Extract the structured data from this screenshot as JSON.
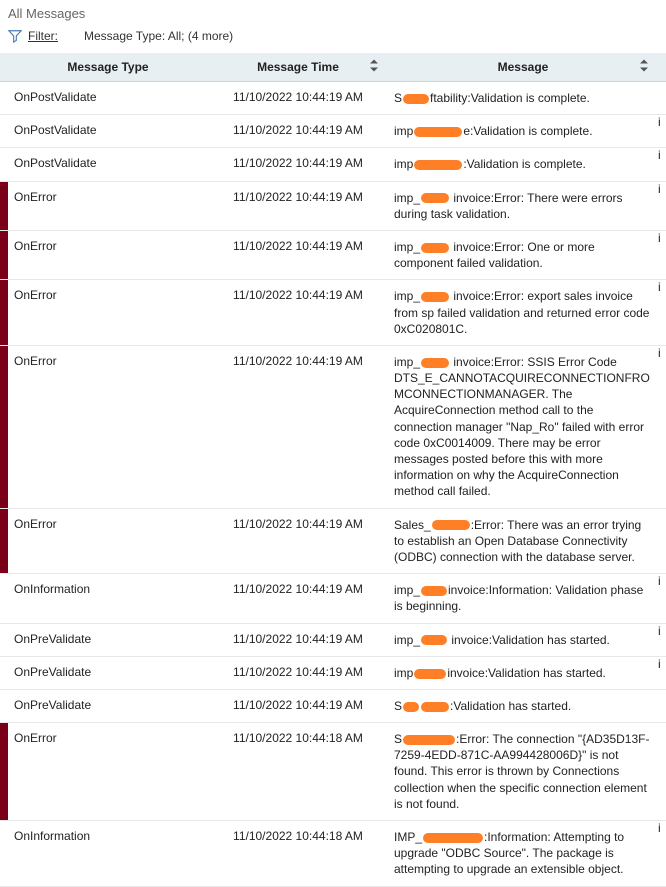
{
  "title": "All Messages",
  "filter": {
    "label": "Filter:",
    "text": "Message Type: All;  (4 more)"
  },
  "columns": {
    "type": "Message  Type",
    "time": "Message  Time",
    "msg": "Message"
  },
  "colors": {
    "error_bar": "#7a0019",
    "redact": "#ff7f27",
    "header_bg": "#e8eff3"
  },
  "rows": [
    {
      "bar": "",
      "type": "OnPostValidate",
      "time": "11/10/2022 10:44:19 AM",
      "msg_parts": [
        {
          "t": "S"
        },
        {
          "r": 26
        },
        {
          "t": "ftability:Validation is complete."
        }
      ],
      "edge": ""
    },
    {
      "bar": "",
      "type": "OnPostValidate",
      "time": "11/10/2022 10:44:19 AM",
      "msg_parts": [
        {
          "t": "imp"
        },
        {
          "r": 48
        },
        {
          "t": "e:Validation is complete."
        }
      ],
      "edge": "i"
    },
    {
      "bar": "",
      "type": "OnPostValidate",
      "time": "11/10/2022 10:44:19 AM",
      "msg_parts": [
        {
          "t": "imp"
        },
        {
          "r": 48
        },
        {
          "t": ":Validation is complete."
        }
      ],
      "edge": "i"
    },
    {
      "bar": "#7a0019",
      "type": "OnError",
      "time": "11/10/2022 10:44:19 AM",
      "msg_parts": [
        {
          "t": "imp_"
        },
        {
          "r": 28
        },
        {
          "t": " invoice:Error: There were errors during task validation."
        }
      ],
      "edge": "i"
    },
    {
      "bar": "#7a0019",
      "type": "OnError",
      "time": "11/10/2022 10:44:19 AM",
      "msg_parts": [
        {
          "t": "imp_"
        },
        {
          "r": 28
        },
        {
          "t": " invoice:Error: One or more component failed validation."
        }
      ],
      "edge": "i"
    },
    {
      "bar": "#7a0019",
      "type": "OnError",
      "time": "11/10/2022 10:44:19 AM",
      "msg_parts": [
        {
          "t": "imp_"
        },
        {
          "r": 28
        },
        {
          "t": " invoice:Error: export sales invoice from sp failed validation and returned error code 0xC020801C."
        }
      ],
      "edge": "i"
    },
    {
      "bar": "#7a0019",
      "type": "OnError",
      "time": "11/10/2022 10:44:19 AM",
      "msg_parts": [
        {
          "t": "imp_"
        },
        {
          "r": 28
        },
        {
          "t": " invoice:Error: SSIS Error Code DTS_E_CANNOTACQUIRECONNECTIONFROMCONNECTIONMANAGER.  The AcquireConnection method call to the connection manager \"Nap_Ro\" failed with error code 0xC0014009.  There may be error messages posted before this with more information on why the AcquireConnection method call failed."
        }
      ],
      "edge": "i"
    },
    {
      "bar": "#7a0019",
      "type": "OnError",
      "time": "11/10/2022 10:44:19 AM",
      "msg_parts": [
        {
          "t": "Sales_"
        },
        {
          "r": 38
        },
        {
          "t": ":Error: There was an error trying to establish an Open Database Connectivity (ODBC) connection with the database server."
        }
      ],
      "edge": ""
    },
    {
      "bar": "",
      "type": "OnInformation",
      "time": "11/10/2022 10:44:19 AM",
      "msg_parts": [
        {
          "t": "imp_"
        },
        {
          "r": 26
        },
        {
          "t": "invoice:Information: Validation phase is beginning."
        }
      ],
      "edge": "i"
    },
    {
      "bar": "",
      "type": "OnPreValidate",
      "time": "11/10/2022 10:44:19 AM",
      "msg_parts": [
        {
          "t": "imp_"
        },
        {
          "r": 26
        },
        {
          "t": " invoice:Validation has started."
        }
      ],
      "edge": "i"
    },
    {
      "bar": "",
      "type": "OnPreValidate",
      "time": "11/10/2022 10:44:19 AM",
      "msg_parts": [
        {
          "t": "imp"
        },
        {
          "r": 32
        },
        {
          "t": "invoice:Validation has started."
        }
      ],
      "edge": "i"
    },
    {
      "bar": "",
      "type": "OnPreValidate",
      "time": "11/10/2022 10:44:19 AM",
      "msg_parts": [
        {
          "t": "S"
        },
        {
          "r": 16
        },
        {
          "r": 28
        },
        {
          "t": ":Validation has started."
        }
      ],
      "edge": ""
    },
    {
      "bar": "#7a0019",
      "type": "OnError",
      "time": "11/10/2022 10:44:18 AM",
      "msg_parts": [
        {
          "t": "S"
        },
        {
          "r": 52
        },
        {
          "t": ":Error: The connection \"{AD35D13F-7259-4EDD-871C-AA994428006D}\" is not found. This error is thrown by Connections collection when the specific connection element is not found."
        }
      ],
      "edge": ""
    },
    {
      "bar": "",
      "type": "OnInformation",
      "time": "11/10/2022 10:44:18 AM",
      "msg_parts": [
        {
          "t": "IMP_"
        },
        {
          "r": 60
        },
        {
          "t": ":Information: Attempting to upgrade \"ODBC Source\". The package is attempting to upgrade an extensible object."
        }
      ],
      "edge": "i"
    }
  ]
}
